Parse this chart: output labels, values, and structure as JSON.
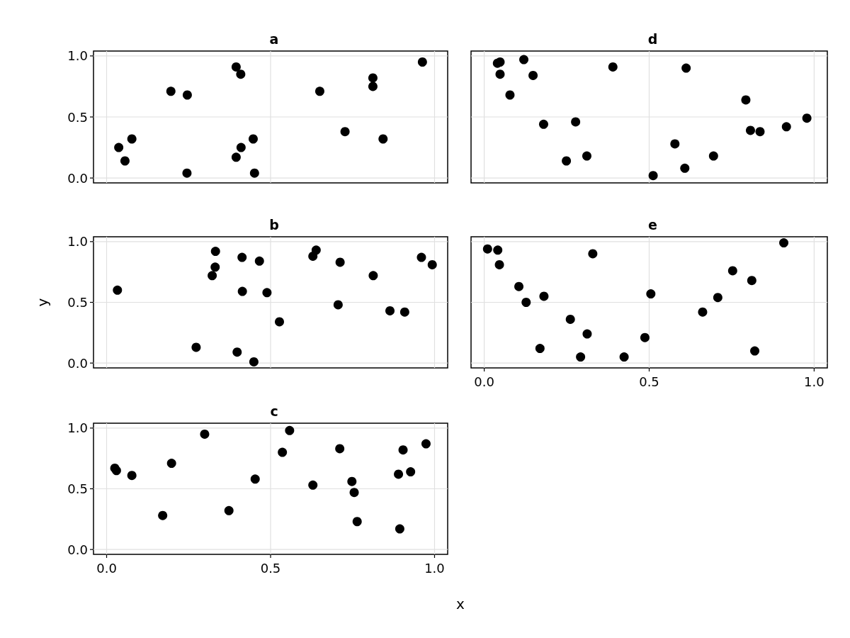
{
  "chart_data": [
    {
      "type": "scatter",
      "title": "a",
      "color": "#000000",
      "marker": "circle",
      "grid": true,
      "tick_labels": "y",
      "xlim": [
        -0.04,
        1.04
      ],
      "ylim": [
        -0.04,
        1.04
      ],
      "xticks": [
        {
          "value": 0,
          "label": null
        },
        {
          "value": 0.5,
          "label": null
        },
        {
          "value": 1,
          "label": null
        }
      ],
      "yticks": [
        {
          "value": 0,
          "label": "0.0"
        },
        {
          "value": 0.5,
          "label": "0.5"
        },
        {
          "value": 1,
          "label": "1.0"
        }
      ],
      "x": [
        0.037,
        0.056,
        0.077,
        0.196,
        0.246,
        0.245,
        0.395,
        0.409,
        0.395,
        0.41,
        0.447,
        0.451,
        0.65,
        0.727,
        0.812,
        0.812,
        0.843,
        0.963
      ],
      "values": [
        0.25,
        0.14,
        0.32,
        0.71,
        0.68,
        0.04,
        0.91,
        0.85,
        0.17,
        0.25,
        0.32,
        0.04,
        0.71,
        0.38,
        0.82,
        0.75,
        0.32,
        0.95
      ]
    },
    {
      "type": "scatter",
      "title": "b",
      "ylabel": "y",
      "color": "#000000",
      "marker": "circle",
      "grid": true,
      "tick_labels": "y",
      "xlim": [
        -0.04,
        1.04
      ],
      "ylim": [
        -0.04,
        1.04
      ],
      "xticks": [
        {
          "value": 0,
          "label": null
        },
        {
          "value": 0.5,
          "label": null
        },
        {
          "value": 1,
          "label": null
        }
      ],
      "yticks": [
        {
          "value": 0,
          "label": "0.0"
        },
        {
          "value": 0.5,
          "label": "0.5"
        },
        {
          "value": 1,
          "label": "1.0"
        }
      ],
      "x": [
        0.033,
        0.273,
        0.322,
        0.331,
        0.332,
        0.398,
        0.413,
        0.414,
        0.449,
        0.466,
        0.489,
        0.527,
        0.629,
        0.639,
        0.706,
        0.712,
        0.813,
        0.864,
        0.909,
        0.96,
        0.993
      ],
      "values": [
        0.6,
        0.13,
        0.72,
        0.79,
        0.92,
        0.09,
        0.87,
        0.59,
        0.01,
        0.84,
        0.58,
        0.34,
        0.88,
        0.93,
        0.48,
        0.83,
        0.72,
        0.43,
        0.42,
        0.87,
        0.81
      ]
    },
    {
      "type": "scatter",
      "title": "c",
      "xlabel": "x",
      "color": "#000000",
      "marker": "circle",
      "grid": true,
      "xlim": [
        -0.04,
        1.04
      ],
      "ylim": [
        -0.04,
        1.04
      ],
      "xticks": [
        {
          "value": 0,
          "label": "0.0"
        },
        {
          "value": 0.5,
          "label": "0.5"
        },
        {
          "value": 1,
          "label": "1.0"
        }
      ],
      "yticks": [
        {
          "value": 0,
          "label": "0.0"
        },
        {
          "value": 0.5,
          "label": "0.5"
        },
        {
          "value": 1,
          "label": "1.0"
        }
      ],
      "x": [
        0.025,
        0.03,
        0.077,
        0.171,
        0.198,
        0.299,
        0.373,
        0.453,
        0.536,
        0.558,
        0.629,
        0.711,
        0.748,
        0.755,
        0.764,
        0.89,
        0.894,
        0.904,
        0.927,
        0.974
      ],
      "values": [
        0.67,
        0.65,
        0.61,
        0.28,
        0.71,
        0.95,
        0.32,
        0.58,
        0.8,
        0.98,
        0.53,
        0.83,
        0.56,
        0.47,
        0.23,
        0.62,
        0.17,
        0.82,
        0.64,
        0.87
      ]
    },
    {
      "type": "scatter",
      "title": "d",
      "color": "#000000",
      "marker": "circle",
      "grid": true,
      "tick_labels": false,
      "xlim": [
        -0.04,
        1.04
      ],
      "ylim": [
        -0.04,
        1.04
      ],
      "xticks": [
        {
          "value": 0,
          "label": null
        },
        {
          "value": 0.5,
          "label": null
        },
        {
          "value": 1,
          "label": null
        }
      ],
      "yticks": [
        {
          "value": 0,
          "label": null
        },
        {
          "value": 0.5,
          "label": null
        },
        {
          "value": 1,
          "label": null
        }
      ],
      "x": [
        0.04,
        0.048,
        0.048,
        0.078,
        0.12,
        0.148,
        0.18,
        0.249,
        0.277,
        0.311,
        0.39,
        0.512,
        0.578,
        0.612,
        0.608,
        0.695,
        0.793,
        0.807,
        0.836,
        0.916,
        0.978
      ],
      "values": [
        0.94,
        0.95,
        0.85,
        0.68,
        0.97,
        0.84,
        0.44,
        0.14,
        0.46,
        0.18,
        0.91,
        0.02,
        0.28,
        0.9,
        0.08,
        0.18,
        0.64,
        0.39,
        0.38,
        0.42,
        0.49
      ]
    },
    {
      "type": "scatter",
      "title": "e",
      "color": "#000000",
      "marker": "circle",
      "grid": true,
      "tick_labels": "x",
      "xlim": [
        -0.04,
        1.04
      ],
      "ylim": [
        -0.04,
        1.04
      ],
      "xticks": [
        {
          "value": 0,
          "label": "0.0"
        },
        {
          "value": 0.5,
          "label": "0.5"
        },
        {
          "value": 1,
          "label": "1.0"
        }
      ],
      "yticks": [
        {
          "value": 0,
          "label": null
        },
        {
          "value": 0.5,
          "label": null
        },
        {
          "value": 1,
          "label": null
        }
      ],
      "x": [
        0.01,
        0.041,
        0.046,
        0.105,
        0.127,
        0.181,
        0.169,
        0.261,
        0.312,
        0.292,
        0.329,
        0.424,
        0.487,
        0.505,
        0.662,
        0.708,
        0.753,
        0.811,
        0.82,
        0.908
      ],
      "values": [
        0.94,
        0.93,
        0.81,
        0.63,
        0.5,
        0.55,
        0.12,
        0.36,
        0.24,
        0.05,
        0.9,
        0.05,
        0.21,
        0.57,
        0.42,
        0.54,
        0.76,
        0.68,
        0.1,
        0.99
      ]
    }
  ]
}
